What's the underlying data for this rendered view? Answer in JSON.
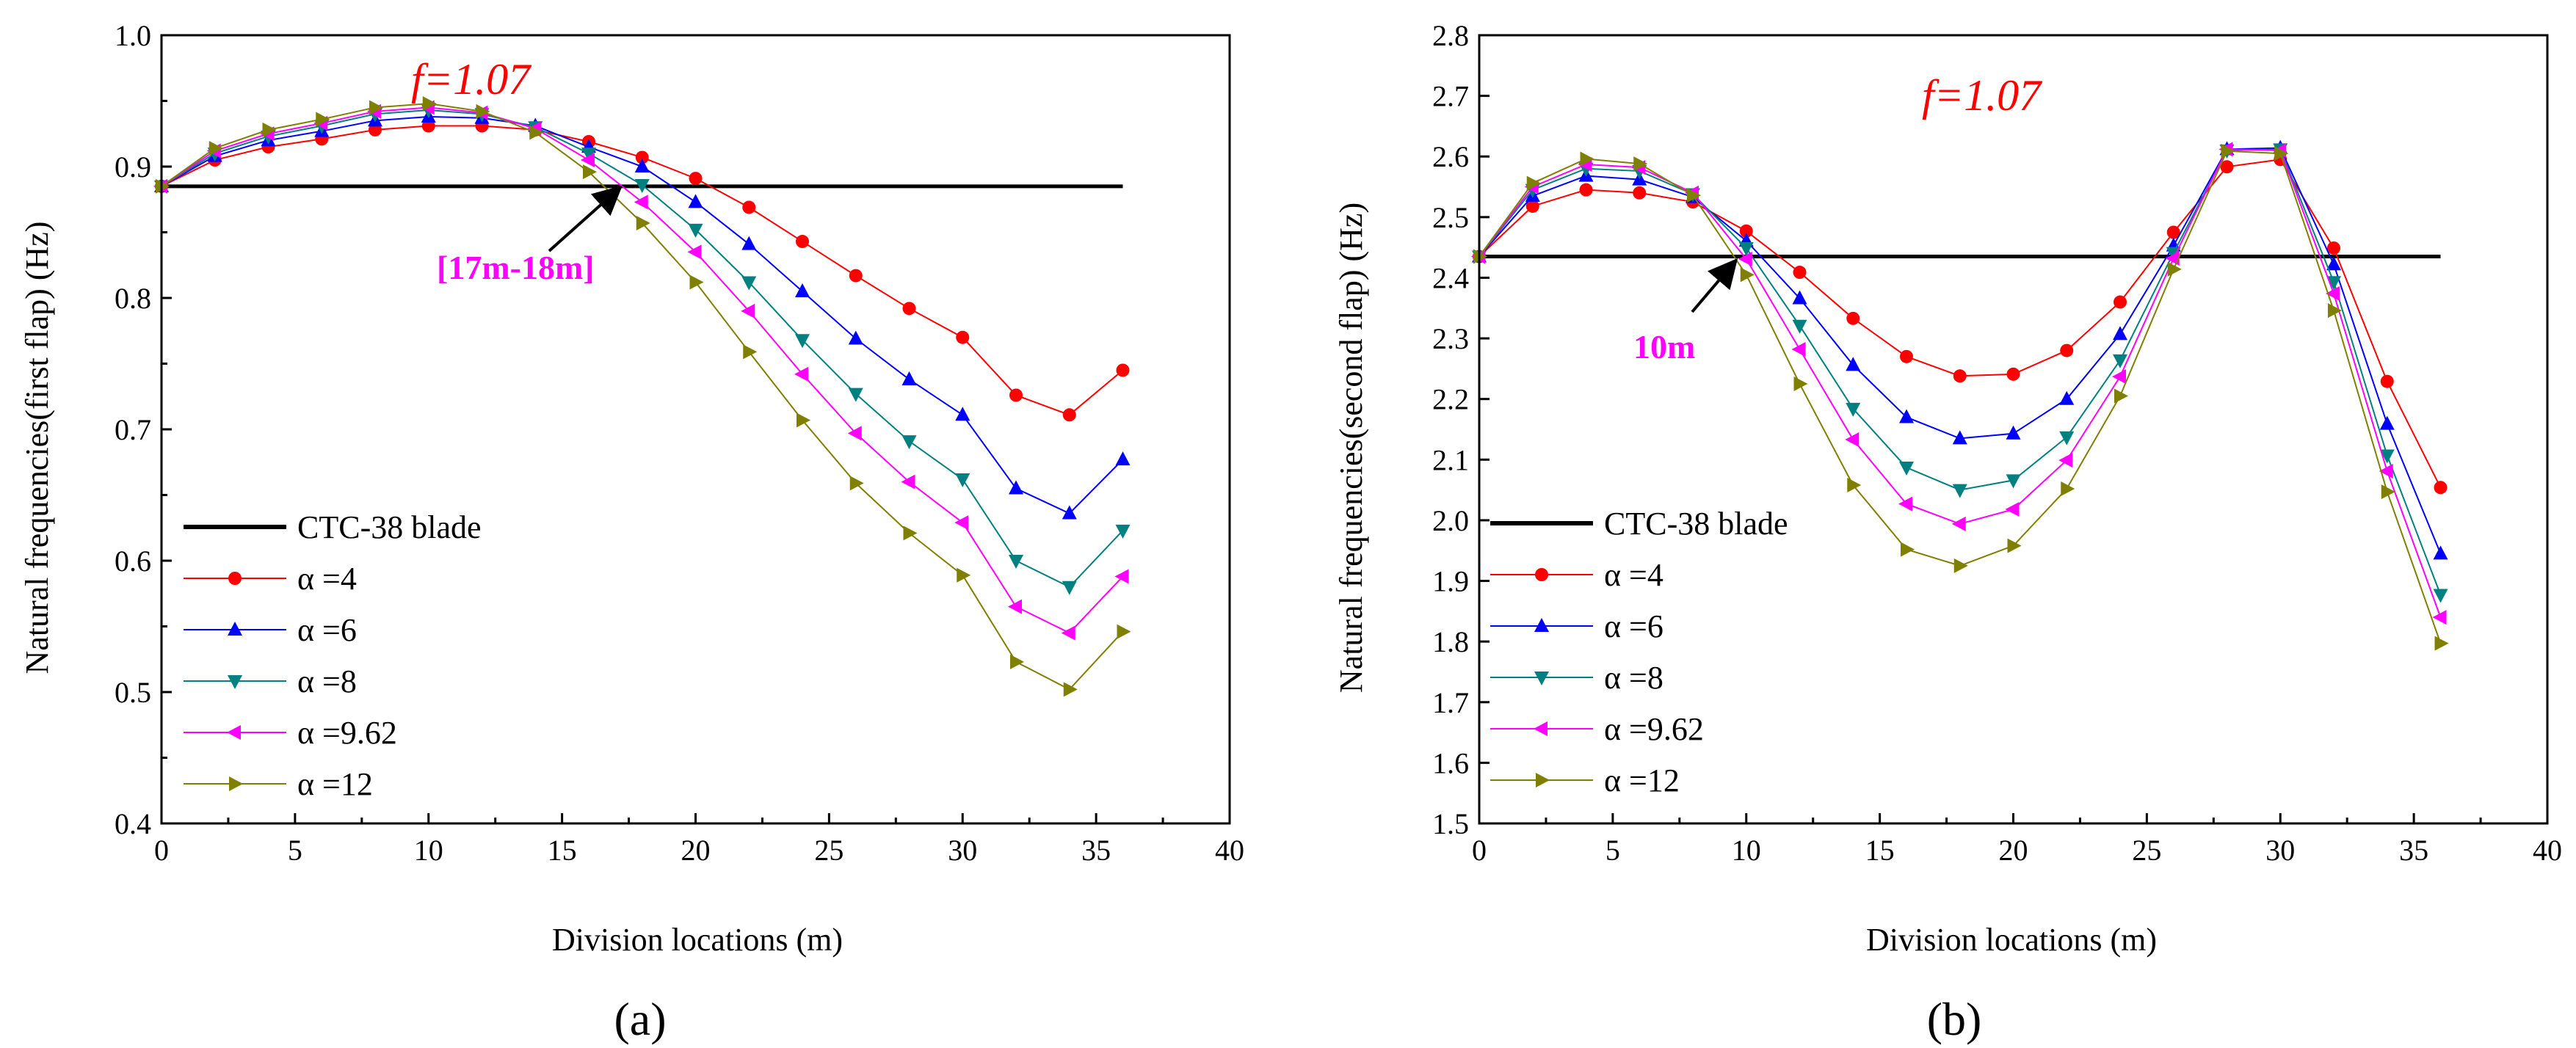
{
  "colors": {
    "baseline": "#000000",
    "a4": "#ff0000",
    "a6": "#0000ff",
    "a8": "#008080",
    "a962": "#ff00ff",
    "a12": "#808000",
    "annotation_red": "#ff0000",
    "annotation_magenta": "#ff00ff"
  },
  "chart_data": [
    {
      "panel_label": "(a)",
      "type": "line",
      "xlabel": "Division locations (m)",
      "ylabel": "Natural frequencies(first flap) (Hz)",
      "xlim": [
        0,
        40
      ],
      "ylim": [
        0.4,
        1.0
      ],
      "xticks": [
        "0",
        "5",
        "10",
        "15",
        "20",
        "25",
        "30",
        "35",
        "40"
      ],
      "yticks": [
        "0.4",
        "0.5",
        "0.6",
        "0.7",
        "0.8",
        "0.9",
        "1.0"
      ],
      "legend_position": "lower-left",
      "annotation_f": "f=1.07",
      "annotation_range": "[17m-18m]",
      "annotation_range_x": 17.5,
      "baseline": {
        "name": "CTC-38 blade",
        "value": 0.885,
        "x": [
          0,
          36
        ]
      },
      "x": [
        0,
        2,
        4,
        6,
        8,
        10,
        12,
        14,
        16,
        18,
        20,
        22,
        24,
        26,
        28,
        30,
        32,
        34,
        36
      ],
      "series": [
        {
          "name": "α =4",
          "marker": "circle",
          "color_key": "a4",
          "values": [
            0.885,
            0.905,
            0.915,
            0.921,
            0.928,
            0.931,
            0.931,
            0.928,
            0.919,
            0.907,
            0.891,
            0.869,
            0.843,
            0.817,
            0.792,
            0.77,
            0.726,
            0.711,
            0.745
          ]
        },
        {
          "name": "α =6",
          "marker": "triangle-up",
          "color_key": "a6",
          "values": [
            0.885,
            0.908,
            0.92,
            0.927,
            0.935,
            0.938,
            0.937,
            0.931,
            0.915,
            0.9,
            0.873,
            0.841,
            0.805,
            0.769,
            0.738,
            0.711,
            0.655,
            0.636,
            0.677
          ]
        },
        {
          "name": "α =8",
          "marker": "triangle-down",
          "color_key": "a8",
          "values": [
            0.885,
            0.91,
            0.923,
            0.931,
            0.94,
            0.943,
            0.94,
            0.93,
            0.91,
            0.886,
            0.852,
            0.812,
            0.768,
            0.727,
            0.691,
            0.662,
            0.6,
            0.58,
            0.623
          ]
        },
        {
          "name": "α =9.62",
          "marker": "triangle-left",
          "color_key": "a962",
          "values": [
            0.885,
            0.912,
            0.925,
            0.933,
            0.942,
            0.945,
            0.941,
            0.929,
            0.905,
            0.873,
            0.835,
            0.79,
            0.742,
            0.697,
            0.66,
            0.629,
            0.565,
            0.545,
            0.588
          ]
        },
        {
          "name": "α =12",
          "marker": "triangle-right",
          "color_key": "a12",
          "values": [
            0.885,
            0.914,
            0.928,
            0.936,
            0.945,
            0.948,
            0.942,
            0.926,
            0.896,
            0.857,
            0.812,
            0.759,
            0.707,
            0.659,
            0.621,
            0.589,
            0.523,
            0.502,
            0.546
          ]
        }
      ]
    },
    {
      "panel_label": "(b)",
      "type": "line",
      "xlabel": "Division locations (m)",
      "ylabel": "Natural frequencies(second flap) (Hz)",
      "xlim": [
        0,
        40
      ],
      "ylim": [
        1.5,
        2.8
      ],
      "xticks": [
        "0",
        "5",
        "10",
        "15",
        "20",
        "25",
        "30",
        "35",
        "40"
      ],
      "yticks": [
        "1.5",
        "1.6",
        "1.7",
        "1.8",
        "1.9",
        "2.0",
        "2.1",
        "2.2",
        "2.3",
        "2.4",
        "2.5",
        "2.6",
        "2.7",
        "2.8"
      ],
      "legend_position": "lower-left",
      "annotation_f": "f=1.07",
      "annotation_range": "10m",
      "annotation_range_x": 10,
      "baseline": {
        "name": "CTC-38 blade",
        "value": 2.435,
        "x": [
          0,
          36
        ]
      },
      "x": [
        0,
        2,
        4,
        6,
        8,
        10,
        12,
        14,
        16,
        18,
        20,
        22,
        24,
        26,
        28,
        30,
        32,
        34,
        36
      ],
      "series": [
        {
          "name": "α =4",
          "marker": "circle",
          "color_key": "a4",
          "values": [
            2.435,
            2.518,
            2.545,
            2.54,
            2.525,
            2.477,
            2.409,
            2.333,
            2.27,
            2.238,
            2.241,
            2.28,
            2.36,
            2.475,
            2.583,
            2.595,
            2.449,
            2.229,
            2.054
          ]
        },
        {
          "name": "α =6",
          "marker": "triangle-up",
          "color_key": "a6",
          "values": [
            2.435,
            2.535,
            2.568,
            2.562,
            2.533,
            2.461,
            2.366,
            2.256,
            2.17,
            2.135,
            2.143,
            2.2,
            2.307,
            2.453,
            2.612,
            2.614,
            2.422,
            2.159,
            1.945
          ]
        },
        {
          "name": "α =8",
          "marker": "triangle-down",
          "color_key": "a8",
          "values": [
            2.435,
            2.545,
            2.58,
            2.576,
            2.538,
            2.449,
            2.321,
            2.184,
            2.087,
            2.05,
            2.066,
            2.137,
            2.264,
            2.441,
            2.61,
            2.612,
            2.393,
            2.107,
            1.877
          ]
        },
        {
          "name": "α =9.62",
          "marker": "triangle-left",
          "color_key": "a962",
          "values": [
            2.435,
            2.55,
            2.587,
            2.582,
            2.54,
            2.431,
            2.282,
            2.133,
            2.027,
            1.994,
            2.018,
            2.099,
            2.237,
            2.432,
            2.612,
            2.61,
            2.374,
            2.081,
            1.84
          ]
        },
        {
          "name": "α =12",
          "marker": "triangle-right",
          "color_key": "a12",
          "values": [
            2.435,
            2.556,
            2.596,
            2.588,
            2.536,
            2.405,
            2.225,
            2.058,
            1.952,
            1.925,
            1.958,
            2.052,
            2.205,
            2.414,
            2.609,
            2.605,
            2.346,
            2.047,
            1.797
          ]
        }
      ]
    }
  ]
}
